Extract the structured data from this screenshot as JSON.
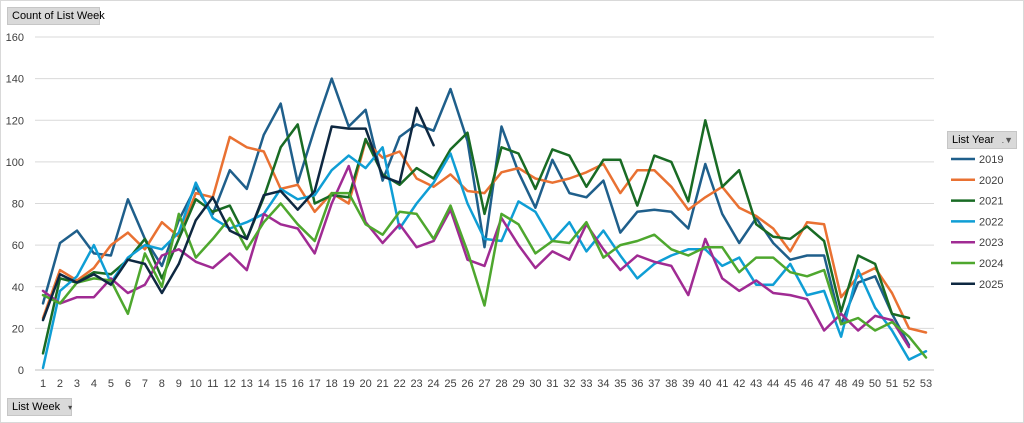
{
  "field_buttons": {
    "value_field": "Count of List Week",
    "axis_field": "List Week",
    "legend_field": "List Year"
  },
  "icons": {
    "axis_dropdown": "dropdown-arrow-icon",
    "legend_filter": "filter-icon"
  },
  "chart_data": {
    "type": "line",
    "title": "",
    "xlabel": "",
    "ylabel": "",
    "ylim": [
      0,
      160
    ],
    "yticks": [
      0,
      20,
      40,
      60,
      80,
      100,
      120,
      140,
      160
    ],
    "grid": "horizontal",
    "legend_position": "right",
    "x": [
      1,
      2,
      3,
      4,
      5,
      6,
      7,
      8,
      9,
      10,
      11,
      12,
      13,
      14,
      15,
      16,
      17,
      18,
      19,
      20,
      21,
      22,
      23,
      24,
      25,
      26,
      27,
      28,
      29,
      30,
      31,
      32,
      33,
      34,
      35,
      36,
      37,
      38,
      39,
      40,
      41,
      42,
      43,
      44,
      45,
      46,
      47,
      48,
      49,
      50,
      51,
      52,
      53
    ],
    "series": [
      {
        "name": "2019",
        "color": "#1f5f8b",
        "values": [
          32,
          61,
          67,
          56,
          55,
          82,
          63,
          50,
          72,
          88,
          75,
          96,
          87,
          113,
          128,
          90,
          116,
          140,
          117,
          125,
          91,
          112,
          118,
          115,
          135,
          110,
          59,
          117,
          95,
          78,
          101,
          85,
          83,
          91,
          66,
          76,
          77,
          76,
          68,
          99,
          75,
          61,
          73,
          61,
          53,
          55,
          55,
          22,
          42,
          45,
          27,
          12,
          null
        ]
      },
      {
        "name": "2020",
        "color": "#e97132",
        "values": [
          25,
          48,
          43,
          49,
          60,
          66,
          58,
          71,
          64,
          85,
          83,
          112,
          107,
          105,
          87,
          89,
          76,
          85,
          80,
          110,
          102,
          105,
          92,
          88,
          94,
          86,
          85,
          95,
          97,
          92,
          90,
          92,
          95,
          99,
          85,
          96,
          96,
          88,
          77,
          83,
          88,
          78,
          74,
          68,
          57,
          71,
          70,
          35,
          45,
          49,
          37,
          20,
          18
        ]
      },
      {
        "name": "2021",
        "color": "#196b24",
        "values": [
          8,
          44,
          42,
          47,
          46,
          53,
          63,
          44,
          63,
          82,
          76,
          79,
          63,
          83,
          107,
          118,
          80,
          84,
          83,
          111,
          94,
          89,
          97,
          92,
          106,
          114,
          75,
          107,
          104,
          87,
          106,
          103,
          88,
          101,
          101,
          79,
          103,
          100,
          81,
          120,
          88,
          96,
          70,
          64,
          63,
          69,
          62,
          28,
          55,
          51,
          27,
          25,
          null
        ]
      },
      {
        "name": "2022",
        "color": "#0f9ed5",
        "values": [
          1,
          38,
          45,
          60,
          42,
          54,
          60,
          58,
          66,
          90,
          73,
          68,
          71,
          75,
          87,
          82,
          84,
          96,
          103,
          97,
          107,
          68,
          80,
          90,
          104,
          80,
          63,
          62,
          81,
          76,
          62,
          71,
          57,
          67,
          55,
          44,
          51,
          55,
          58,
          58,
          50,
          54,
          41,
          41,
          51,
          36,
          38,
          16,
          48,
          30,
          19,
          5,
          9
        ]
      },
      {
        "name": "2023",
        "color": "#a02b93",
        "values": [
          38,
          32,
          35,
          35,
          44,
          37,
          41,
          55,
          58,
          52,
          49,
          56,
          48,
          75,
          70,
          68,
          56,
          80,
          98,
          71,
          61,
          70,
          59,
          62,
          77,
          53,
          50,
          73,
          60,
          49,
          57,
          53,
          70,
          58,
          48,
          55,
          52,
          50,
          36,
          63,
          44,
          38,
          43,
          37,
          36,
          34,
          19,
          27,
          19,
          26,
          24,
          11,
          null
        ]
      },
      {
        "name": "2024",
        "color": "#4ea72e",
        "values": [
          36,
          32,
          42,
          44,
          43,
          27,
          56,
          40,
          75,
          54,
          63,
          73,
          58,
          71,
          80,
          70,
          62,
          85,
          85,
          70,
          65,
          76,
          75,
          63,
          79,
          57,
          31,
          75,
          70,
          56,
          62,
          61,
          71,
          54,
          60,
          62,
          65,
          58,
          55,
          59,
          59,
          47,
          54,
          54,
          47,
          45,
          48,
          22,
          25,
          19,
          23,
          16,
          6
        ]
      },
      {
        "name": "2025",
        "color": "#0e2841",
        "values": [
          24,
          46,
          42,
          46,
          41,
          53,
          51,
          37,
          51,
          72,
          83,
          67,
          63,
          84,
          86,
          77,
          86,
          117,
          116,
          116,
          93,
          90,
          126,
          108,
          null,
          null,
          null,
          null,
          null,
          null,
          null,
          null,
          null,
          null,
          null,
          null,
          null,
          null,
          null,
          null,
          null,
          null,
          null,
          null,
          null,
          null,
          null,
          null,
          null,
          null,
          null,
          null,
          null
        ]
      }
    ]
  }
}
